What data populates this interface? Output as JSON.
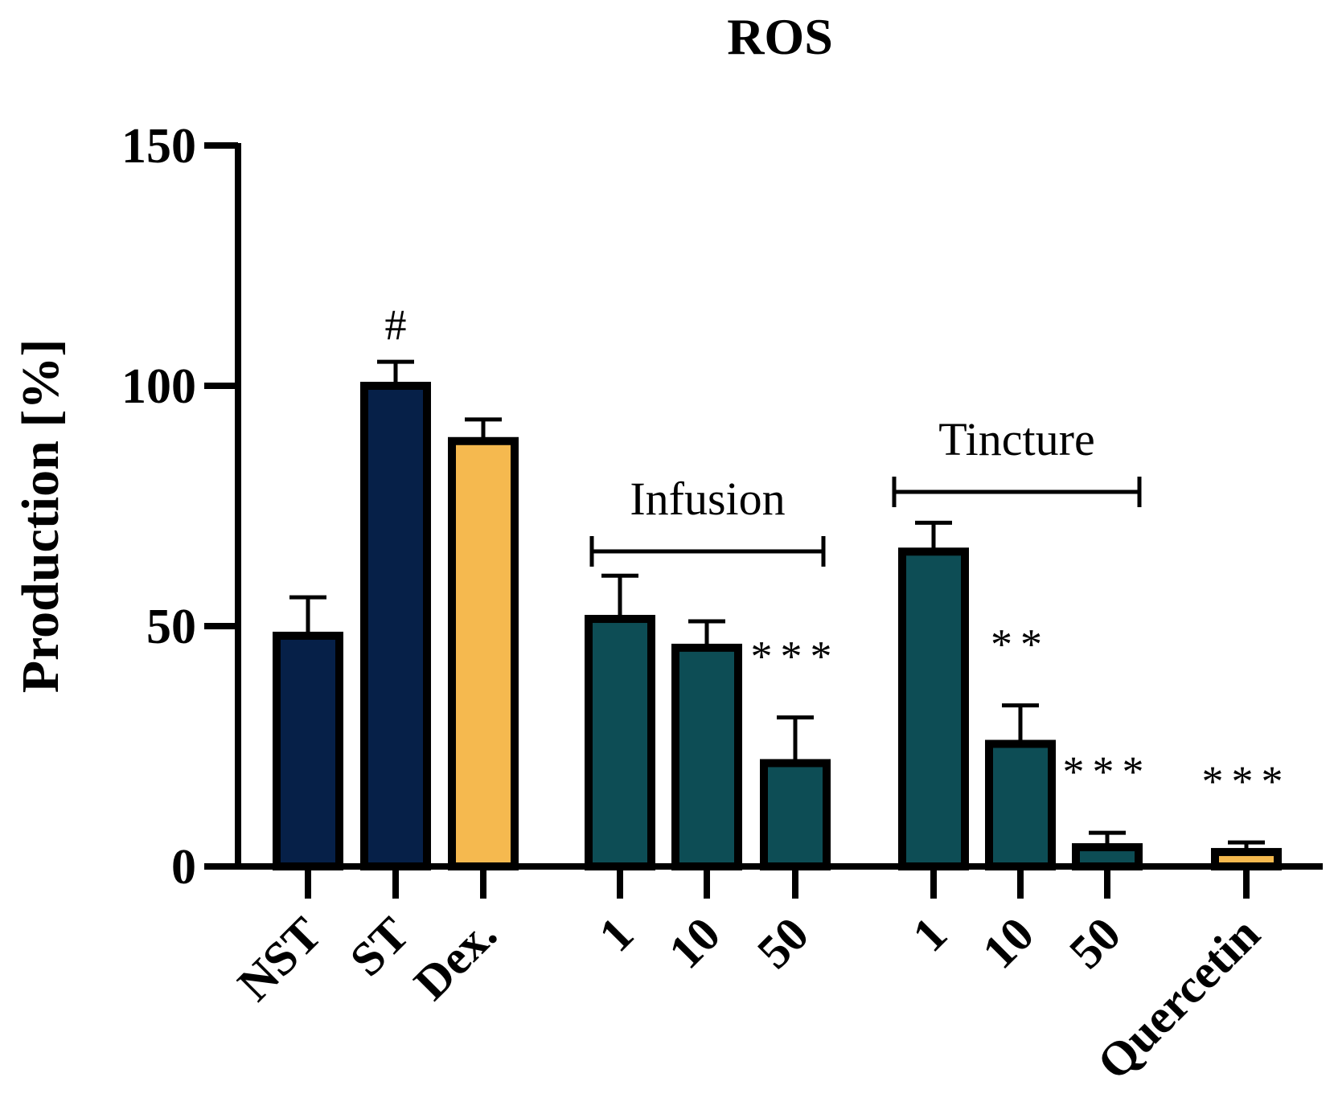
{
  "chart_data": {
    "type": "bar",
    "title": "ROS",
    "xlabel": "",
    "ylabel": "Production [%]",
    "ylim": [
      0,
      150
    ],
    "yticks": [
      "0",
      "50",
      "100",
      "150"
    ],
    "colors": {
      "navy": "#062048",
      "gold": "#F5B94F",
      "teal": "#0D4D55",
      "outline": "#000000"
    },
    "bars": [
      {
        "label": "NST",
        "value": 48,
        "error": 8,
        "color": "navy",
        "annotation": ""
      },
      {
        "label": "ST",
        "value": 100,
        "error": 5,
        "color": "navy",
        "annotation": "#"
      },
      {
        "label": "Dex.",
        "value": 88.5,
        "error": 4.5,
        "color": "gold",
        "annotation": ""
      },
      {
        "label": "1",
        "value": 51.5,
        "error": 9,
        "color": "teal",
        "annotation": ""
      },
      {
        "label": "10",
        "value": 45.5,
        "error": 5.5,
        "color": "teal",
        "annotation": ""
      },
      {
        "label": "50",
        "value": 21.5,
        "error": 9.5,
        "color": "teal",
        "annotation": "***"
      },
      {
        "label": "1",
        "value": 65.5,
        "error": 6,
        "color": "teal",
        "annotation": ""
      },
      {
        "label": "10",
        "value": 25.5,
        "error": 8,
        "color": "teal",
        "annotation": "**"
      },
      {
        "label": "50",
        "value": 4,
        "error": 3,
        "color": "teal",
        "annotation": "***"
      },
      {
        "label": "Quercetin",
        "value": 3,
        "error": 2,
        "color": "gold",
        "annotation": "***"
      }
    ],
    "groups": [
      {
        "label": "Infusion",
        "from": 3,
        "to": 5
      },
      {
        "label": "Tincture",
        "from": 6,
        "to": 8
      }
    ]
  }
}
